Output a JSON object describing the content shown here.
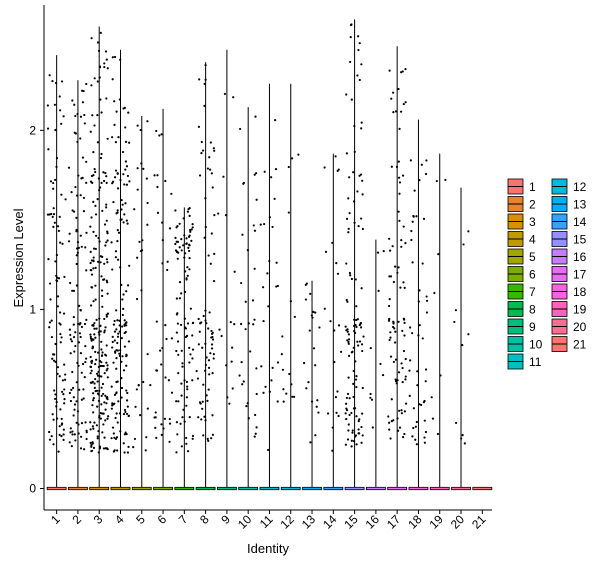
{
  "chart_data": {
    "type": "violin",
    "xlabel": "Identity",
    "ylabel": "Expression Level",
    "ylim": [
      -0.12,
      2.7
    ],
    "yticks": [
      0,
      1,
      2
    ],
    "grid": false,
    "legend_placement": "right",
    "categories": [
      "1",
      "2",
      "3",
      "4",
      "5",
      "6",
      "7",
      "8",
      "9",
      "10",
      "11",
      "12",
      "13",
      "14",
      "15",
      "16",
      "17",
      "18",
      "19",
      "20",
      "21"
    ],
    "series": [
      {
        "name": "1",
        "color": "#F8766D",
        "max": 2.42,
        "density": 0.38
      },
      {
        "name": "2",
        "color": "#EA8331",
        "max": 2.28,
        "density": 0.45
      },
      {
        "name": "3",
        "color": "#D89000",
        "max": 2.58,
        "density": 0.9
      },
      {
        "name": "4",
        "color": "#C09B00",
        "max": 2.45,
        "density": 0.6
      },
      {
        "name": "5",
        "color": "#A3A500",
        "max": 2.08,
        "density": 0.12
      },
      {
        "name": "6",
        "color": "#7CAE00",
        "max": 2.12,
        "density": 0.15
      },
      {
        "name": "7",
        "color": "#39B600",
        "max": 1.57,
        "density": 0.4
      },
      {
        "name": "8",
        "color": "#00BB4E",
        "max": 2.38,
        "density": 0.3
      },
      {
        "name": "9",
        "color": "#00BF7D",
        "max": 2.45,
        "density": 0.06
      },
      {
        "name": "10",
        "color": "#00C1A3",
        "max": 2.13,
        "density": 0.13
      },
      {
        "name": "11",
        "color": "#00BFC4",
        "max": 2.26,
        "density": 0.1
      },
      {
        "name": "12",
        "color": "#00BAE0",
        "max": 2.26,
        "density": 0.06
      },
      {
        "name": "13",
        "color": "#00B0F6",
        "max": 1.16,
        "density": 0.08
      },
      {
        "name": "14",
        "color": "#35A2FF",
        "max": 1.87,
        "density": 0.08
      },
      {
        "name": "15",
        "color": "#9590FF",
        "max": 2.62,
        "density": 0.45
      },
      {
        "name": "16",
        "color": "#C77CFF",
        "max": 1.39,
        "density": 0.04
      },
      {
        "name": "17",
        "color": "#E76BF3",
        "max": 2.47,
        "density": 0.35
      },
      {
        "name": "18",
        "color": "#FA62DB",
        "max": 2.06,
        "density": 0.18
      },
      {
        "name": "19",
        "color": "#FF62BC",
        "max": 1.87,
        "density": 0.03
      },
      {
        "name": "20",
        "color": "#FF6C91",
        "max": 1.68,
        "density": 0.04
      },
      {
        "name": "21",
        "color": "#F8766D",
        "max": 0.0,
        "density": 0.0
      }
    ]
  }
}
